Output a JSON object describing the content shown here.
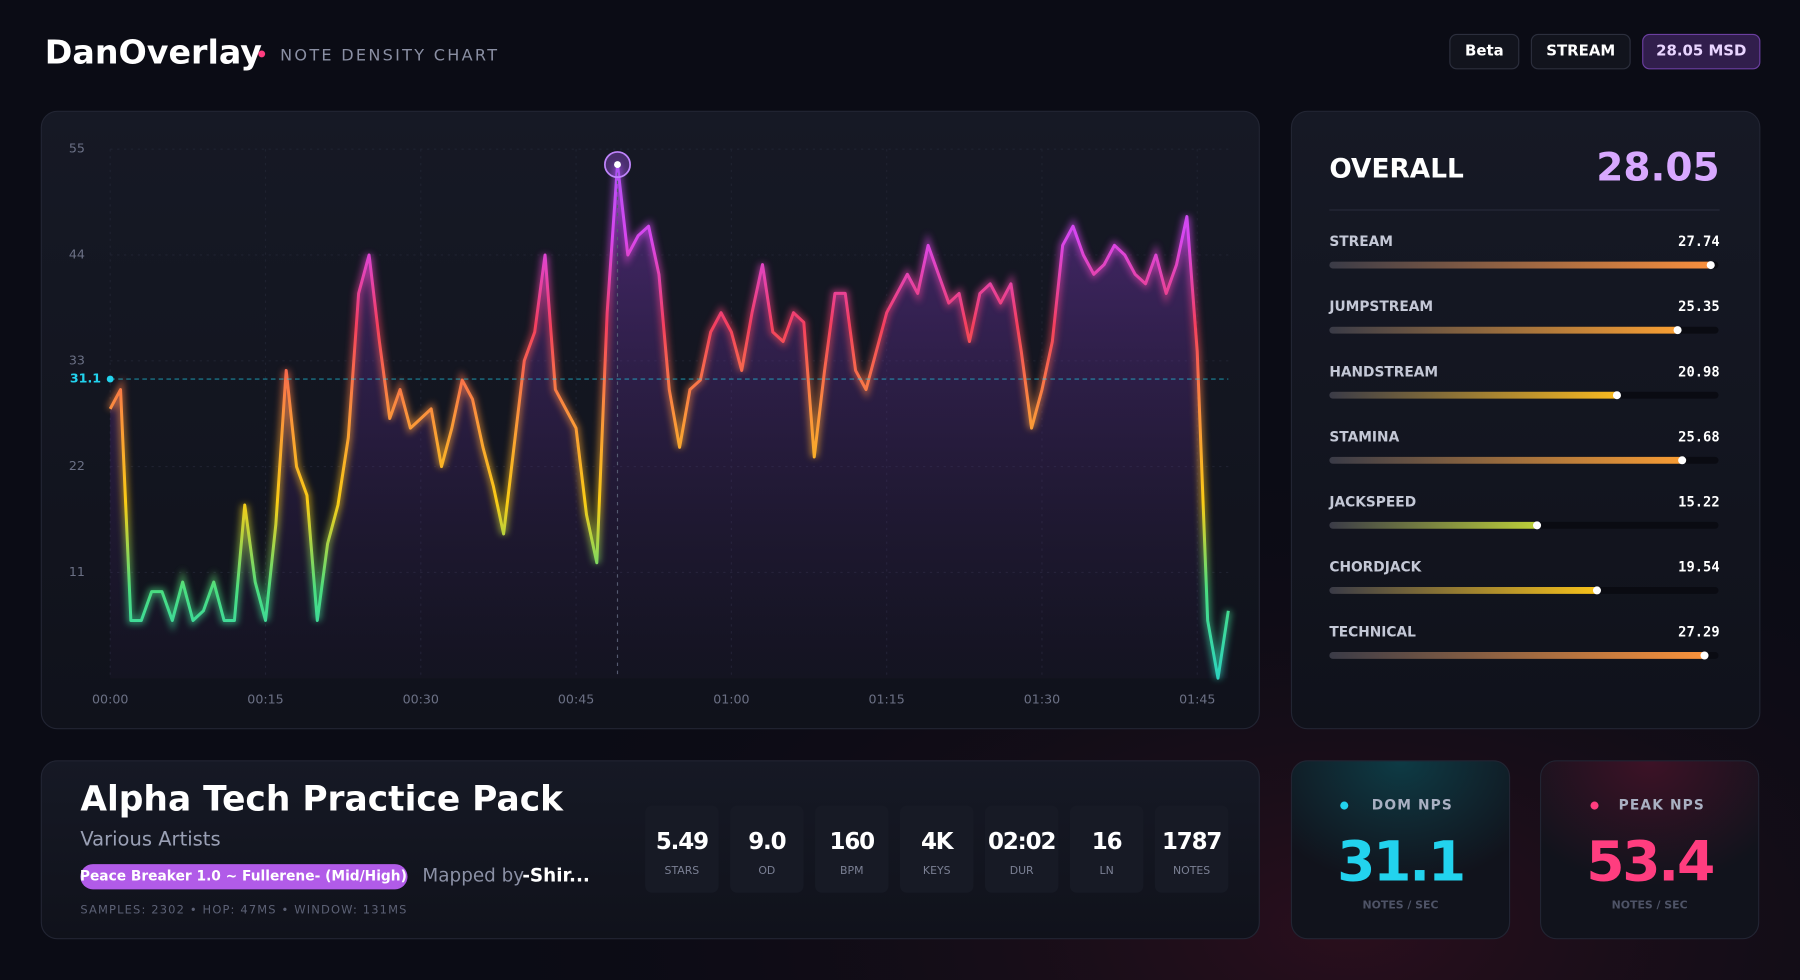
{
  "header": {
    "brand": "DanOverlay",
    "subtitle": "NOTE DENSITY CHART",
    "badges": [
      "Beta",
      "STREAM",
      "28.05 MSD"
    ]
  },
  "chart_data": {
    "type": "line",
    "x": [
      0,
      1,
      2,
      3,
      4,
      5,
      6,
      7,
      8,
      9,
      10,
      11,
      12,
      13,
      14,
      15,
      16,
      17,
      18,
      19,
      20,
      21,
      22,
      23,
      24,
      25,
      26,
      27,
      28,
      29,
      30,
      31,
      32,
      33,
      34,
      35,
      36,
      37,
      38,
      39,
      40,
      41,
      42,
      43,
      44,
      45,
      46,
      47,
      48,
      49,
      50,
      51,
      52,
      53,
      54,
      55,
      56,
      57,
      58,
      59,
      60,
      61,
      62,
      63,
      64,
      65,
      66,
      67,
      68,
      69,
      70,
      71,
      72,
      73,
      74,
      75,
      76,
      77,
      78,
      79,
      80,
      81,
      82,
      83,
      84,
      85,
      86,
      87,
      88,
      89,
      90,
      91,
      92,
      93,
      94,
      95,
      96,
      97,
      98,
      99,
      100,
      101,
      102,
      103,
      104,
      105,
      106,
      107,
      108
    ],
    "values": [
      28,
      30,
      6,
      6,
      9,
      9,
      6,
      10,
      6,
      7,
      10,
      6,
      6,
      18,
      10,
      6,
      16,
      32,
      22,
      19,
      6,
      14,
      18,
      25,
      40,
      44,
      35,
      27,
      30,
      26,
      27,
      28,
      22,
      26,
      31,
      29,
      24,
      20,
      15,
      24,
      33,
      36,
      44,
      30,
      28,
      26,
      17,
      12,
      38,
      53.4,
      44,
      46,
      47,
      42,
      30,
      24,
      30,
      31,
      36,
      38,
      36,
      32,
      38,
      43,
      36,
      35,
      38,
      37,
      23,
      32,
      40,
      40,
      32,
      30,
      34,
      38,
      40,
      42,
      40,
      45,
      42,
      39,
      40,
      35,
      40,
      41,
      39,
      41,
      34,
      26,
      30,
      35,
      45,
      47,
      44,
      42,
      43,
      45,
      44,
      42,
      41,
      44,
      40,
      43,
      48,
      34,
      6,
      0,
      7
    ],
    "color_scale": [
      "#2dd4bf",
      "#4ade80",
      "#facc15",
      "#fb923c",
      "#f43f5e",
      "#d946ef",
      "#a855f7"
    ],
    "xlim": [
      0,
      108
    ],
    "ylim": [
      0,
      55
    ],
    "xticks": [
      {
        "value": 0,
        "label": "00:00"
      },
      {
        "value": 15,
        "label": "00:15"
      },
      {
        "value": 30,
        "label": "00:30"
      },
      {
        "value": 45,
        "label": "00:45"
      },
      {
        "value": 60,
        "label": "01:00"
      },
      {
        "value": 75,
        "label": "01:15"
      },
      {
        "value": 90,
        "label": "01:30"
      },
      {
        "value": 105,
        "label": "01:45"
      }
    ],
    "yticks": [
      11,
      22,
      33,
      44,
      55
    ],
    "reference_line": 31.1,
    "peak_index": 49,
    "grid": true
  },
  "skillsets": {
    "overall_label": "OVERALL",
    "overall": 28.05,
    "items": [
      {
        "name": "STREAM",
        "value": 27.74
      },
      {
        "name": "JUMPSTREAM",
        "value": 25.35
      },
      {
        "name": "HANDSTREAM",
        "value": 20.98
      },
      {
        "name": "STAMINA",
        "value": 25.68
      },
      {
        "name": "JACKSPEED",
        "value": 15.22
      },
      {
        "name": "CHORDJACK",
        "value": 19.54
      },
      {
        "name": "TECHNICAL",
        "value": 27.29
      }
    ]
  },
  "song": {
    "title": "Alpha Tech Practice Pack",
    "artist": "Various Artists",
    "difficulty": "Peace Breaker 1.0 ~ Fullerene- (Mid/High)",
    "mapped_by_label": "Mapped by",
    "mapper": "-Shir...",
    "footer": "SAMPLES: 2302 • HOP: 47MS • WINDOW: 131MS",
    "stats": [
      {
        "value": "5.49",
        "label": "STARS"
      },
      {
        "value": "9.0",
        "label": "OD"
      },
      {
        "value": "160",
        "label": "BPM"
      },
      {
        "value": "4K",
        "label": "KEYS"
      },
      {
        "value": "02:02",
        "label": "DUR"
      },
      {
        "value": "16",
        "label": "LN"
      },
      {
        "value": "1787",
        "label": "NOTES"
      }
    ]
  },
  "nps": [
    {
      "label": "DOM NPS",
      "value": "31.1",
      "unit": "NOTES / SEC"
    },
    {
      "label": "PEAK NPS",
      "value": "53.4",
      "unit": "NOTES / SEC"
    }
  ]
}
